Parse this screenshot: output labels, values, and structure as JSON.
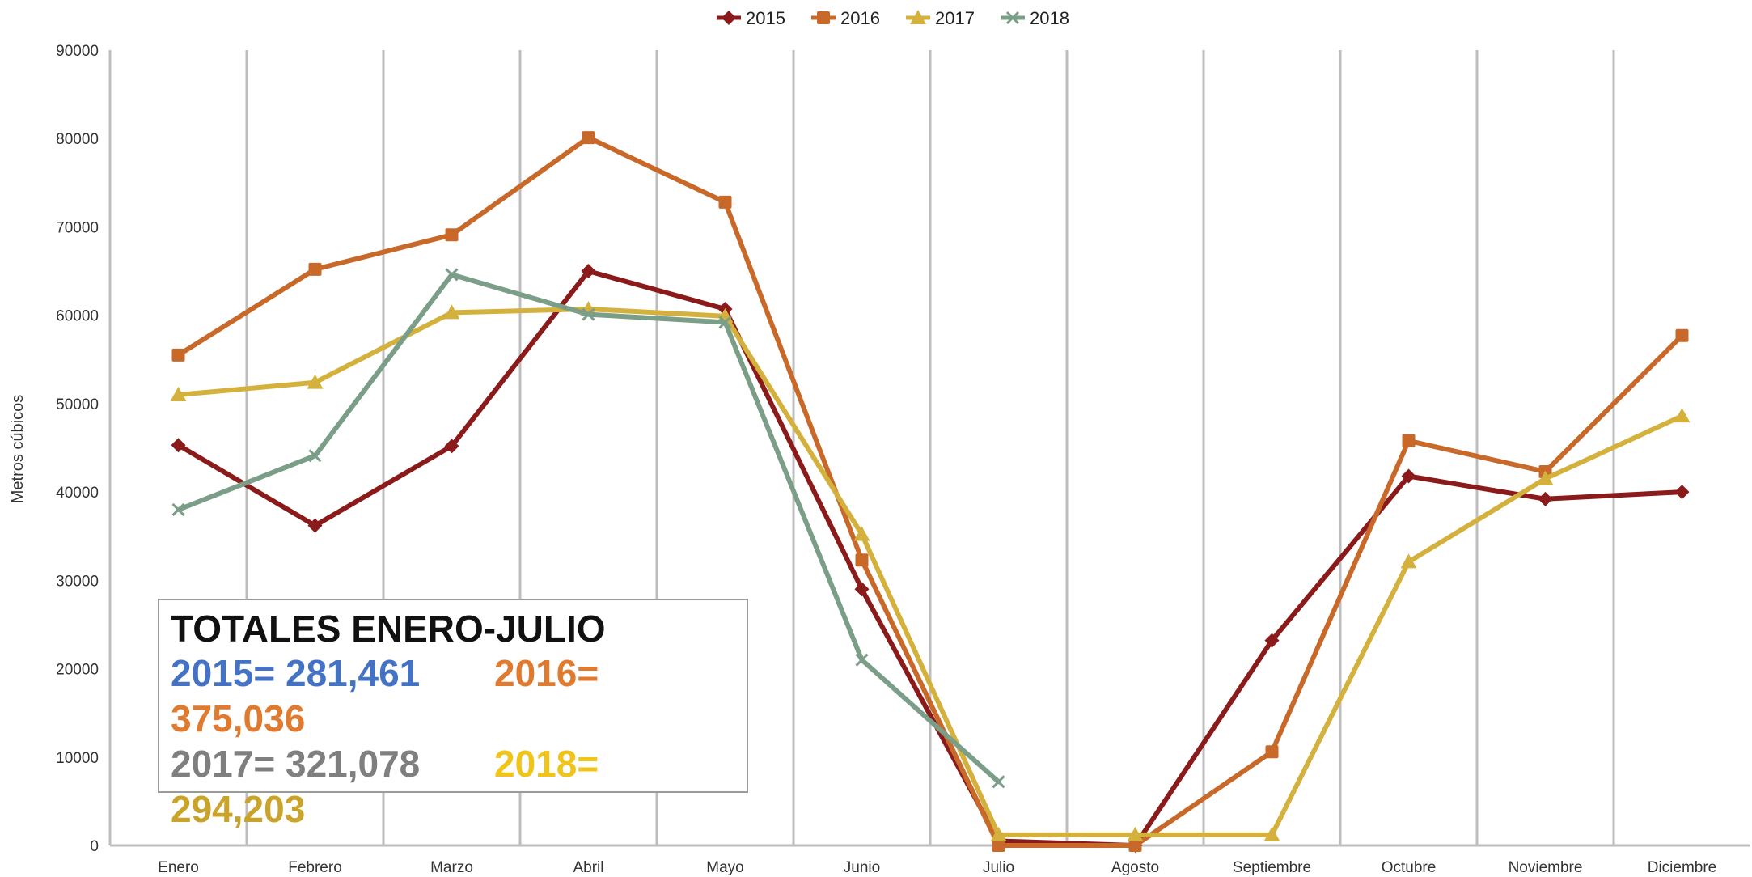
{
  "chart_data": {
    "type": "line",
    "title": "",
    "xlabel": "",
    "ylabel": "Metros cúbicos",
    "categories": [
      "Enero",
      "Febrero",
      "Marzo",
      "Abril",
      "Mayo",
      "Junio",
      "Julio",
      "Agosto",
      "Septiembre",
      "Octubre",
      "Noviembre",
      "Diciembre"
    ],
    "ylim": [
      0,
      90000
    ],
    "yticks": [
      "0",
      "10000",
      "20000",
      "30000",
      "40000",
      "50000",
      "60000",
      "70000",
      "80000",
      "90000"
    ],
    "ytick_values": [
      0,
      10000,
      20000,
      30000,
      40000,
      50000,
      60000,
      70000,
      80000,
      90000
    ],
    "grid": "vertical",
    "legend_position": "top",
    "series": [
      {
        "name": "2015",
        "color": "#8b1a1a",
        "marker": "diamond",
        "values": [
          45300,
          36200,
          45200,
          65000,
          60700,
          29000,
          500,
          0,
          23200,
          41800,
          39200,
          40000
        ]
      },
      {
        "name": "2016",
        "color": "#c8692a",
        "marker": "square",
        "values": [
          55500,
          65200,
          69100,
          80100,
          72800,
          32300,
          0,
          0,
          10600,
          45800,
          42300,
          57700
        ]
      },
      {
        "name": "2017",
        "color": "#d4b13c",
        "marker": "triangle",
        "values": [
          51000,
          52400,
          60300,
          60700,
          59900,
          35200,
          1200,
          1200,
          1200,
          32100,
          41500,
          48600
        ]
      },
      {
        "name": "2018",
        "color": "#7a9e87",
        "marker": "x",
        "values": [
          38000,
          44100,
          64600,
          60100,
          59200,
          21000,
          7200,
          null,
          null,
          null,
          null,
          null
        ]
      }
    ]
  },
  "totals": {
    "title": "TOTALES ENERO-JULIO",
    "items": [
      {
        "year": "2015=",
        "value": "281,461"
      },
      {
        "year": "2016=",
        "value": "375,036"
      },
      {
        "year": "2017=",
        "value": "321,078"
      },
      {
        "year": "2018=",
        "value": "294,203"
      }
    ]
  }
}
